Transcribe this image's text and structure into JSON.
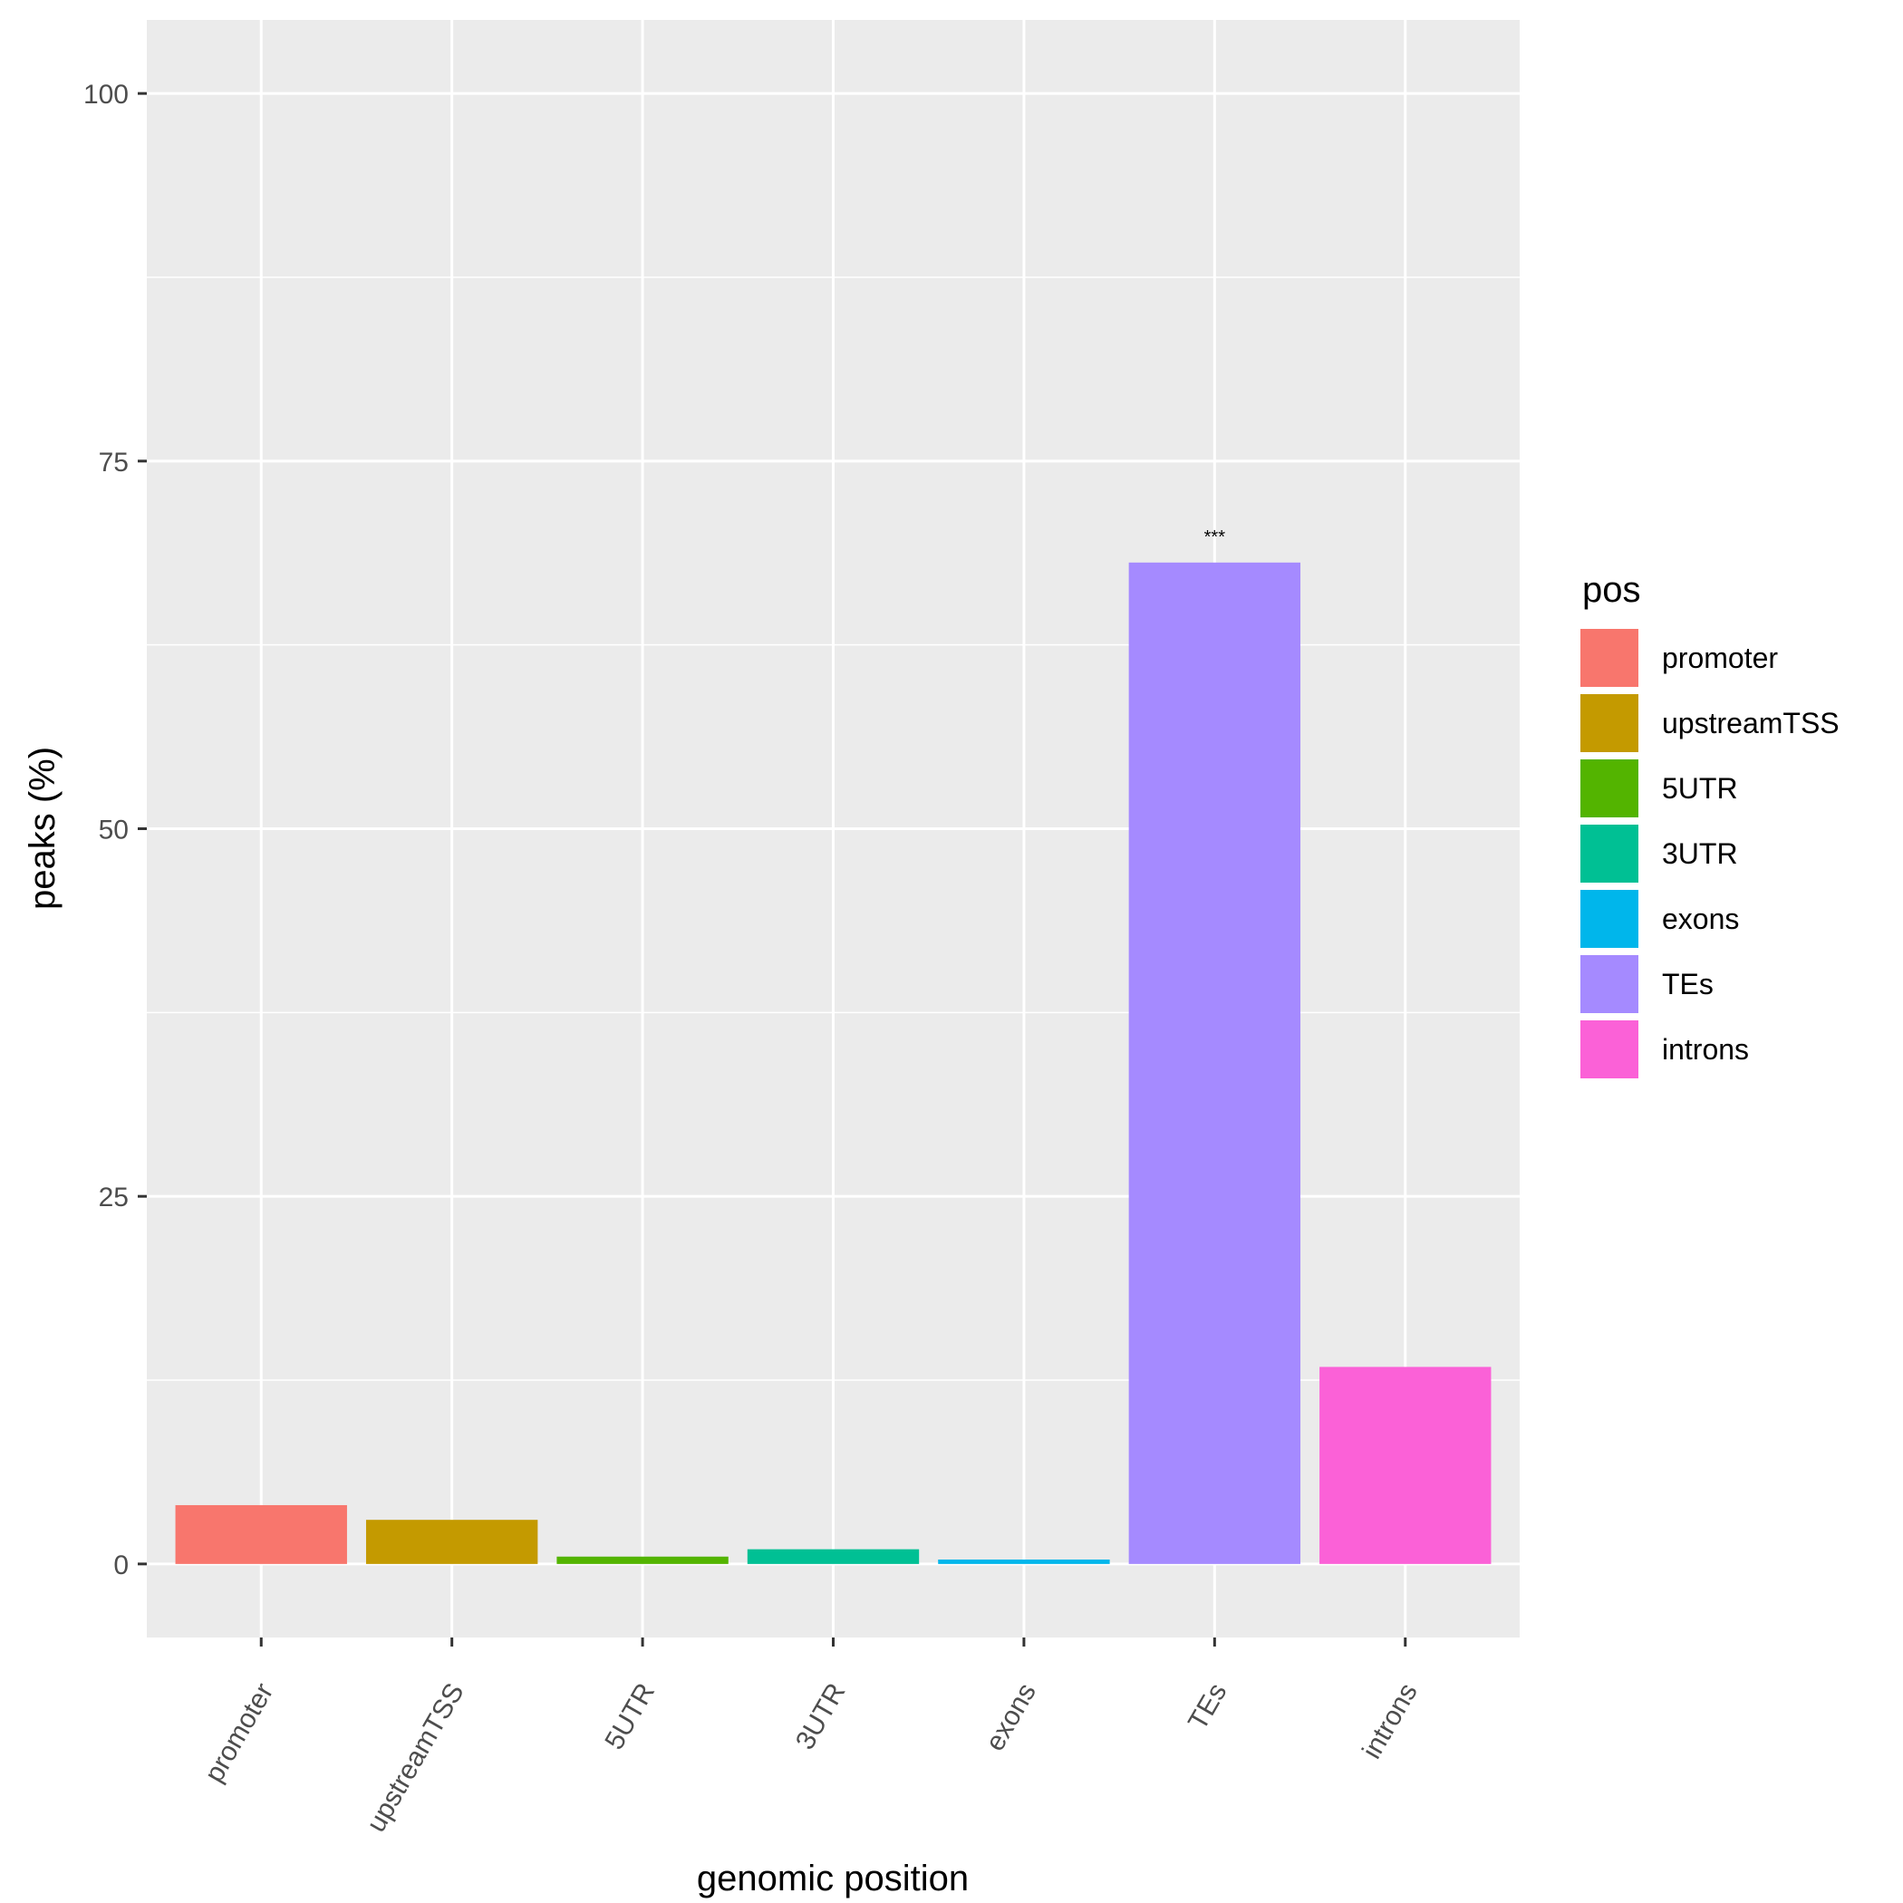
{
  "chart_data": {
    "type": "bar",
    "categories": [
      "promoter",
      "upstreamTSS",
      "5UTR",
      "3UTR",
      "exons",
      "TEs",
      "introns"
    ],
    "values": [
      4.0,
      3.0,
      0.5,
      1.0,
      0.3,
      68.1,
      13.4
    ],
    "colors": [
      "#F8766D",
      "#C49A00",
      "#53B400",
      "#00C094",
      "#00B6EB",
      "#A58AFF",
      "#FB61D7"
    ],
    "xlabel": "genomic position",
    "ylabel": "peaks (%)",
    "ylim": [
      -5,
      105
    ],
    "yticks": [
      0,
      25,
      50,
      75,
      100
    ],
    "grid": true,
    "legend": {
      "title": "pos",
      "placement": "right",
      "entries": [
        "promoter",
        "upstreamTSS",
        "5UTR",
        "3UTR",
        "exons",
        "TEs",
        "introns"
      ]
    },
    "annotations": [
      {
        "category": "TEs",
        "text": "***"
      }
    ]
  }
}
